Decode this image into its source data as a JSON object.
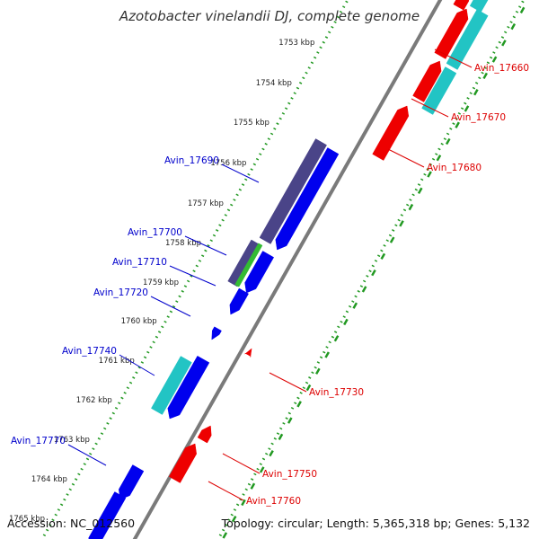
{
  "title": "Azotobacter vinelandii DJ, complete genome",
  "footer": {
    "accession": "Accession: NC_012560",
    "topology": "Topology: circular; Length: 5,365,318 bp; Genes: 5,132"
  },
  "colors": {
    "forward_cds": "#0000ee",
    "reverse_cds": "#ee0000",
    "cyan_feature": "#22c4c4",
    "purple_feature": "#4a4488",
    "green_feature": "#33bb33",
    "backbone": "#7a7a7a",
    "forward_label": "#0000cc",
    "reverse_label": "#dd0000",
    "tick_dots": "#229922"
  },
  "scale_ticks": [
    "1753 kbp",
    "1754 kbp",
    "1755 kbp",
    "1756 kbp",
    "1757 kbp",
    "1758 kbp",
    "1759 kbp",
    "1760 kbp",
    "1761 kbp",
    "1762 kbp",
    "1763 kbp",
    "1764 kbp",
    "1765 kbp"
  ],
  "forward_labels": [
    "Avin_17690",
    "Avin_17700",
    "Avin_17710",
    "Avin_17720",
    "Avin_17740",
    "Avin_17770"
  ],
  "reverse_labels": [
    "Avin_17660",
    "Avin_17670",
    "Avin_17680",
    "Avin_17730",
    "Avin_17750",
    "Avin_17760"
  ]
}
